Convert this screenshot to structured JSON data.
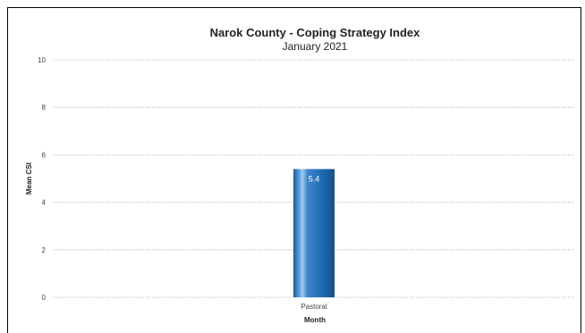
{
  "chart_data": {
    "type": "bar",
    "title": "Narok County - Coping Strategy Index",
    "subtitle": "January 2021",
    "xlabel": "Month",
    "ylabel": "Mean CSI",
    "categories": [
      "Pastoral"
    ],
    "values": [
      5.4
    ],
    "value_labels": [
      "5.4"
    ],
    "ylim": [
      0,
      10
    ],
    "yticks": [
      "0",
      "2",
      "4",
      "6",
      "8",
      "10"
    ],
    "grid": true,
    "legend": "none",
    "colors": {
      "bar_dark": "#1a5f9e",
      "bar_light": "#5fa0dd",
      "grid": "#999999"
    }
  }
}
